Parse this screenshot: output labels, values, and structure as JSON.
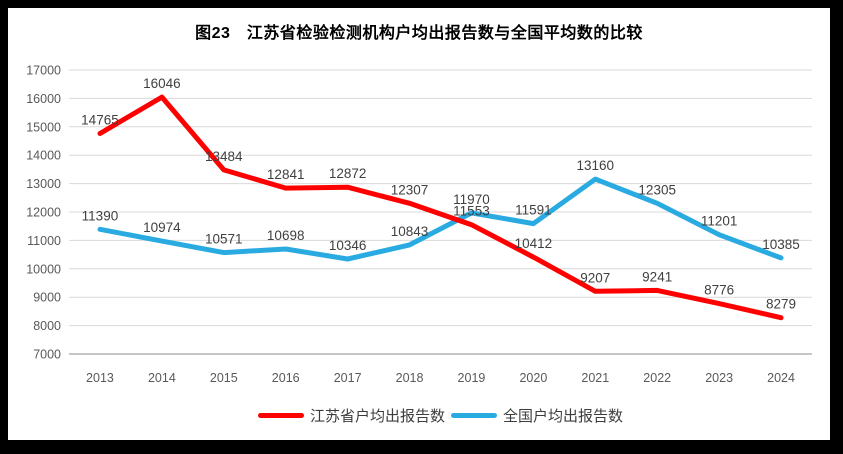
{
  "chart_data": {
    "type": "line",
    "title": "图23　江苏省检验检测机构户均出报告数与全国平均数的比较",
    "categories": [
      "2013",
      "2014",
      "2015",
      "2016",
      "2017",
      "2018",
      "2019",
      "2020",
      "2021",
      "2022",
      "2023",
      "2024"
    ],
    "series": [
      {
        "name": "江苏省户均出报告数",
        "color": "#FF0000",
        "values": [
          14765,
          16046,
          13484,
          12841,
          12872,
          12307,
          11553,
          10412,
          9207,
          9241,
          8776,
          8279
        ]
      },
      {
        "name": "全国户均出报告数",
        "color": "#29ABE2",
        "values": [
          11390,
          10974,
          10571,
          10698,
          10346,
          10843,
          11970,
          11591,
          13160,
          12305,
          11201,
          10385
        ]
      }
    ],
    "ylim": [
      7000,
      17000
    ],
    "ystep": 1000,
    "grid": "horizontal",
    "legend_position": "bottom",
    "data_labels": true,
    "colors": {
      "background": "#FFFFFF",
      "frame": "#000000",
      "gridline": "#D9D9D9",
      "axis_line": "#C6C6C6",
      "tick_label": "#595959",
      "data_label": "#404040",
      "title": "#000000"
    }
  }
}
